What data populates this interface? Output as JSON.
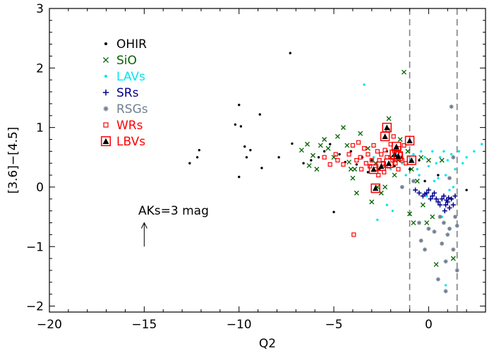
{
  "chart_data": {
    "type": "scatter",
    "title": "",
    "xlabel": "Q2",
    "ylabel": "[3.6]−[4.5]",
    "xlim": [
      -20,
      3
    ],
    "ylim": [
      -2.1,
      3
    ],
    "xticks": [
      -20,
      -15,
      -10,
      -5,
      0
    ],
    "yticks": [
      -2,
      -1,
      0,
      1,
      2,
      3
    ],
    "xtick_labels": [
      "−20",
      "−15",
      "−10",
      "−5",
      "0"
    ],
    "ytick_labels": [
      "−2",
      "−1",
      "0",
      "1",
      "2",
      "3"
    ],
    "grid": false,
    "legend_position": "upper-left",
    "vlines": [
      -1.0,
      1.5
    ],
    "annotation": {
      "text": "AKs=3 mag",
      "arrow_from": [
        -15,
        -1.0
      ],
      "arrow_to": [
        -15,
        -0.6
      ]
    },
    "series": [
      {
        "name": "OHIR",
        "marker": "dot",
        "color": "#000000",
        "points": [
          [
            -12.6,
            0.4
          ],
          [
            -12.2,
            0.5
          ],
          [
            -12.1,
            0.62
          ],
          [
            -10.2,
            1.05
          ],
          [
            -10.0,
            1.38
          ],
          [
            -10.0,
            0.17
          ],
          [
            -9.9,
            1.02
          ],
          [
            -9.7,
            0.68
          ],
          [
            -9.6,
            0.5
          ],
          [
            -9.4,
            0.62
          ],
          [
            -8.9,
            1.22
          ],
          [
            -8.8,
            0.32
          ],
          [
            -7.9,
            0.5
          ],
          [
            -7.3,
            2.25
          ],
          [
            -7.2,
            0.73
          ],
          [
            -6.6,
            0.4
          ],
          [
            -6.2,
            0.45
          ],
          [
            -5.8,
            0.5
          ],
          [
            -5.5,
            0.6
          ],
          [
            -5.2,
            0.72
          ],
          [
            -5.0,
            -0.42
          ],
          [
            -4.7,
            0.55
          ],
          [
            -4.4,
            0.42
          ],
          [
            -4.1,
            0.6
          ],
          [
            -3.8,
            0.38
          ],
          [
            -3.5,
            0.5
          ],
          [
            -3.2,
            0.25
          ],
          [
            -3.0,
            0.45
          ],
          [
            -2.6,
            0.3
          ],
          [
            -2.2,
            0.6
          ],
          [
            -1.8,
            0.35
          ],
          [
            -1.4,
            0.5
          ],
          [
            -1.0,
            0.3
          ],
          [
            -0.5,
            0.45
          ],
          [
            -0.2,
            0.1
          ],
          [
            0.5,
            0.2
          ],
          [
            1.2,
            -0.2
          ],
          [
            2.0,
            -0.05
          ]
        ]
      },
      {
        "name": "SiO",
        "marker": "x",
        "color": "#006400",
        "points": [
          [
            -6.7,
            0.62
          ],
          [
            -6.4,
            0.72
          ],
          [
            -6.1,
            0.53
          ],
          [
            -6.3,
            0.36
          ],
          [
            -5.9,
            0.3
          ],
          [
            -5.5,
            0.8
          ],
          [
            -5.3,
            0.65
          ],
          [
            -5.0,
            0.5
          ],
          [
            -4.8,
            0.85
          ],
          [
            -4.5,
            1.0
          ],
          [
            -4.3,
            0.7
          ],
          [
            -4.1,
            0.3
          ],
          [
            -4.0,
            0.15
          ],
          [
            -3.8,
            -0.1
          ],
          [
            -3.6,
            0.9
          ],
          [
            -3.2,
            0.65
          ],
          [
            -3.0,
            -0.25
          ],
          [
            -2.8,
            0.4
          ],
          [
            -2.5,
            -0.1
          ],
          [
            -2.3,
            0.0
          ],
          [
            -2.0,
            0.5
          ],
          [
            -1.8,
            0.2
          ],
          [
            -1.5,
            0.8
          ],
          [
            -1.3,
            1.93
          ],
          [
            -1.1,
            0.6
          ],
          [
            -0.9,
            0.3
          ],
          [
            -0.6,
            0.1
          ],
          [
            -0.3,
            -0.3
          ],
          [
            -0.1,
            -0.6
          ],
          [
            0.2,
            -0.5
          ],
          [
            0.4,
            -1.3
          ],
          [
            -0.8,
            -0.6
          ],
          [
            -1.0,
            -0.45
          ],
          [
            -2.7,
            0.0
          ],
          [
            -3.9,
            0.3
          ],
          [
            -4.2,
            0.42
          ],
          [
            -5.7,
            0.7
          ],
          [
            -2.1,
            1.15
          ],
          [
            -1.6,
            0.45
          ],
          [
            0.0,
            0.45
          ],
          [
            0.7,
            0.45
          ],
          [
            1.3,
            -1.2
          ],
          [
            -0.4,
            0.5
          ]
        ]
      },
      {
        "name": "LAVs",
        "marker": "dot",
        "color": "#00e5ee",
        "points": [
          [
            -3.4,
            1.72
          ],
          [
            -2.9,
            0.5
          ],
          [
            -2.4,
            0.35
          ],
          [
            -2.0,
            0.3
          ],
          [
            -1.7,
            0.55
          ],
          [
            -1.4,
            0.4
          ],
          [
            -1.2,
            0.2
          ],
          [
            -1.0,
            0.5
          ],
          [
            -0.8,
            0.55
          ],
          [
            -0.6,
            0.3
          ],
          [
            -0.4,
            0.6
          ],
          [
            -0.2,
            0.5
          ],
          [
            0.0,
            0.35
          ],
          [
            0.2,
            0.6
          ],
          [
            0.4,
            0.4
          ],
          [
            0.6,
            0.5
          ],
          [
            0.8,
            0.6
          ],
          [
            1.0,
            0.45
          ],
          [
            1.2,
            0.55
          ],
          [
            1.4,
            0.3
          ],
          [
            1.6,
            0.6
          ],
          [
            1.8,
            0.4
          ],
          [
            2.0,
            0.5
          ],
          [
            2.4,
            0.6
          ],
          [
            2.8,
            0.72
          ],
          [
            0.5,
            0.15
          ],
          [
            0.9,
            0.2
          ],
          [
            -0.5,
            0.2
          ],
          [
            -0.1,
            -0.15
          ],
          [
            0.3,
            0.1
          ],
          [
            0.7,
            -0.5
          ],
          [
            1.1,
            -0.05
          ],
          [
            1.3,
            0.0
          ],
          [
            0.9,
            -1.65
          ],
          [
            -2.2,
            -0.3
          ],
          [
            -1.9,
            -0.4
          ],
          [
            -2.7,
            -0.55
          ]
        ]
      },
      {
        "name": "SRs",
        "marker": "plus",
        "color": "#00008b",
        "points": [
          [
            -0.7,
            -0.05
          ],
          [
            -0.5,
            -0.1
          ],
          [
            -0.3,
            -0.15
          ],
          [
            -0.1,
            -0.1
          ],
          [
            0.1,
            -0.2
          ],
          [
            0.3,
            -0.1
          ],
          [
            0.5,
            -0.25
          ],
          [
            0.7,
            -0.2
          ],
          [
            0.9,
            -0.3
          ],
          [
            1.0,
            -0.25
          ],
          [
            1.1,
            -0.35
          ],
          [
            1.2,
            -0.2
          ],
          [
            0.8,
            -0.15
          ],
          [
            0.6,
            -0.3
          ],
          [
            0.4,
            -0.2
          ],
          [
            0.2,
            -0.15
          ],
          [
            0.0,
            -0.05
          ],
          [
            -0.2,
            -0.12
          ],
          [
            1.3,
            -0.3
          ],
          [
            1.4,
            -0.15
          ],
          [
            0.85,
            -0.4
          ],
          [
            0.95,
            -0.22
          ],
          [
            1.05,
            -0.18
          ]
        ]
      },
      {
        "name": "RSGs",
        "marker": "star",
        "color": "#708090",
        "points": [
          [
            -1.4,
            0.0
          ],
          [
            -0.8,
            0.1
          ],
          [
            -0.5,
            -0.6
          ],
          [
            -0.4,
            -0.9
          ],
          [
            -0.2,
            -1.05
          ],
          [
            0.0,
            -0.7
          ],
          [
            0.3,
            -0.75
          ],
          [
            0.6,
            -0.5
          ],
          [
            0.7,
            -0.95
          ],
          [
            0.8,
            -0.6
          ],
          [
            0.9,
            -1.25
          ],
          [
            1.0,
            -0.8
          ],
          [
            1.1,
            -0.7
          ],
          [
            1.3,
            -1.05
          ],
          [
            1.4,
            -0.5
          ],
          [
            1.5,
            -0.65
          ],
          [
            1.2,
            1.35
          ],
          [
            1.1,
            0.15
          ],
          [
            0.9,
            -1.75
          ],
          [
            0.5,
            -1.55
          ],
          [
            1.3,
            0.5
          ],
          [
            1.5,
            -1.4
          ]
        ]
      },
      {
        "name": "WRs",
        "marker": "square",
        "color": "#ff0000",
        "points": [
          [
            -5.5,
            0.5
          ],
          [
            -5.2,
            0.38
          ],
          [
            -4.8,
            0.45
          ],
          [
            -4.5,
            0.38
          ],
          [
            -4.2,
            0.55
          ],
          [
            -4.0,
            0.7
          ],
          [
            -3.8,
            0.45
          ],
          [
            -3.6,
            0.5
          ],
          [
            -3.4,
            0.65
          ],
          [
            -3.2,
            0.55
          ],
          [
            -3.0,
            0.45
          ],
          [
            -2.9,
            0.7
          ],
          [
            -2.8,
            0.3
          ],
          [
            -2.7,
            0.6
          ],
          [
            -2.6,
            0.45
          ],
          [
            -2.5,
            0.55
          ],
          [
            -2.4,
            0.4
          ],
          [
            -2.3,
            0.62
          ],
          [
            -2.2,
            0.5
          ],
          [
            -2.1,
            0.35
          ],
          [
            -2.0,
            0.72
          ],
          [
            -1.9,
            0.45
          ],
          [
            -1.8,
            0.6
          ],
          [
            -1.7,
            0.5
          ],
          [
            -1.6,
            0.3
          ],
          [
            -1.5,
            0.55
          ],
          [
            -1.4,
            0.45
          ],
          [
            -1.3,
            0.7
          ],
          [
            -1.2,
            0.4
          ],
          [
            -3.1,
            0.35
          ],
          [
            -3.3,
            0.4
          ],
          [
            -2.65,
            0.2
          ],
          [
            -2.35,
            0.25
          ],
          [
            -1.85,
            0.85
          ],
          [
            -1.55,
            0.65
          ],
          [
            -3.7,
            0.75
          ],
          [
            -4.9,
            0.55
          ],
          [
            -3.95,
            -0.8
          ],
          [
            -2.15,
            0.95
          ],
          [
            -1.75,
            0.4
          ],
          [
            -3.55,
            0.3
          ]
        ]
      },
      {
        "name": "LBVs",
        "marker": "triangle-box",
        "color": "#ff0000",
        "points": [
          [
            -2.8,
            -0.02
          ],
          [
            -2.2,
            1.0
          ],
          [
            -2.3,
            0.85
          ],
          [
            -1.0,
            0.78
          ],
          [
            -1.7,
            0.68
          ],
          [
            -1.8,
            0.55
          ],
          [
            -1.6,
            0.52
          ],
          [
            -2.1,
            0.4
          ],
          [
            -2.5,
            0.35
          ],
          [
            -2.9,
            0.3
          ],
          [
            -0.9,
            0.45
          ]
        ]
      }
    ]
  }
}
